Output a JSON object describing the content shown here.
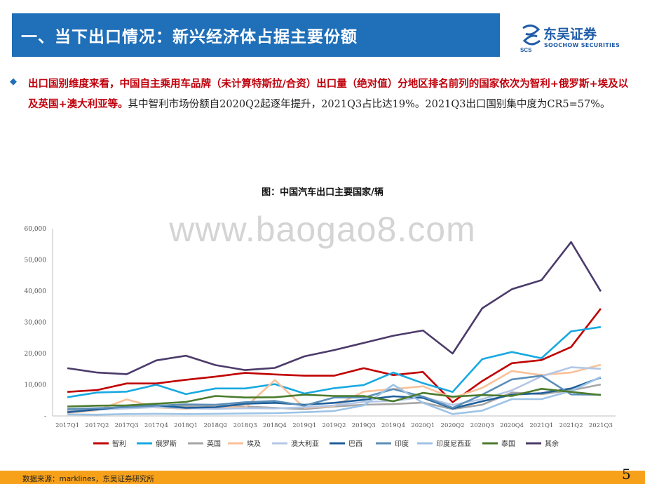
{
  "header": {
    "title": "一、当下出口情况：新兴经济体占据主要份额",
    "logo_name": "东吴证券",
    "logo_sub": "SOOCHOW SECURITIES",
    "logo_mark": "SCS"
  },
  "body": {
    "bullet_icon": "diamond-icon",
    "highlight": "出口国别维度来看，中国自主乘用车品牌（未计算特斯拉/合资）出口量（绝对值）分地区排名前列的国家依次为智利+俄罗斯+埃及以及英国+澳大利亚等。",
    "normal": "其中智利市场份额自2020Q2起逐年提升，2021Q3占比达19%。2021Q3出口国别集中度为CR5=57%。"
  },
  "watermark": "www.baogao8.com",
  "chart_data": {
    "type": "line",
    "title": "图：中国汽车出口主要国家/辆",
    "ylim": [
      0,
      60000
    ],
    "yticks": [
      "-",
      "10,000",
      "20,000",
      "30,000",
      "40,000",
      "50,000",
      "60,000"
    ],
    "categories": [
      "2017Q1",
      "2017Q2",
      "2017Q3",
      "2017Q4",
      "2018Q1",
      "2018Q2",
      "2018Q3",
      "2018Q4",
      "2019Q1",
      "2019Q2",
      "2019Q3",
      "2019Q4",
      "2020Q1",
      "2020Q2",
      "2020Q3",
      "2020Q4",
      "2021Q1",
      "2021Q2",
      "2021Q3"
    ],
    "series": [
      {
        "name": "智利",
        "color": "#c00000",
        "values": [
          7700,
          8300,
          10400,
          10400,
          11600,
          12600,
          13800,
          13300,
          12900,
          12900,
          15300,
          13100,
          14100,
          4400,
          11200,
          16900,
          17900,
          22100,
          34400
        ]
      },
      {
        "name": "俄罗斯",
        "color": "#18a9e1",
        "values": [
          6000,
          7500,
          7800,
          10000,
          7000,
          8800,
          8800,
          10200,
          7200,
          8900,
          9900,
          13900,
          10500,
          7700,
          18200,
          20500,
          18500,
          27100,
          28500
        ]
      },
      {
        "name": "英国",
        "color": "#a6a6a6",
        "values": [
          1800,
          2200,
          2600,
          3000,
          3200,
          3400,
          3000,
          2600,
          2200,
          3000,
          3600,
          3800,
          4300,
          2200,
          3600,
          7500,
          7000,
          8200,
          10100
        ]
      },
      {
        "name": "埃及",
        "color": "#f8c19a",
        "values": [
          1000,
          1800,
          5300,
          2700,
          2300,
          2900,
          2700,
          11500,
          2600,
          3200,
          7800,
          8600,
          9500,
          5800,
          9000,
          14400,
          13100,
          13900,
          16400
        ]
      },
      {
        "name": "澳大利亚",
        "color": "#b4c7e7",
        "values": [
          1400,
          2000,
          2400,
          2800,
          2500,
          2300,
          2500,
          2400,
          2800,
          3400,
          4500,
          4800,
          6100,
          3500,
          5400,
          8200,
          12700,
          15600,
          15100
        ]
      },
      {
        "name": "巴西",
        "color": "#1f5f9a",
        "values": [
          1200,
          2100,
          3000,
          3400,
          2600,
          2800,
          3900,
          4200,
          3600,
          4200,
          5200,
          6300,
          5800,
          2400,
          4700,
          6800,
          7300,
          8800,
          12300
        ]
      },
      {
        "name": "印度",
        "color": "#5b8fb9",
        "values": [
          2200,
          2500,
          2800,
          3300,
          3700,
          3600,
          4400,
          4800,
          3300,
          5900,
          5900,
          8600,
          6200,
          2600,
          6800,
          11700,
          12900,
          6900,
          6800
        ]
      },
      {
        "name": "印度尼西亚",
        "color": "#9dc3e6",
        "values": [
          500,
          400,
          600,
          700,
          600,
          700,
          800,
          900,
          1200,
          1600,
          3400,
          10000,
          4200,
          600,
          1700,
          5400,
          5400,
          8000,
          12500
        ]
      },
      {
        "name": "泰国",
        "color": "#4b7b2c",
        "values": [
          3000,
          3300,
          3400,
          3900,
          4500,
          6400,
          5900,
          6000,
          6800,
          6400,
          6400,
          4700,
          7400,
          6200,
          6700,
          6400,
          8700,
          7700,
          6700
        ]
      },
      {
        "name": "其余",
        "color": "#4b3b6a",
        "values": [
          15300,
          13900,
          13400,
          17800,
          19300,
          16300,
          14700,
          15400,
          19100,
          21100,
          23400,
          25700,
          27400,
          20000,
          34500,
          40600,
          43500,
          55700,
          39900
        ]
      }
    ]
  },
  "footer": {
    "source": "数据来源：marklines，东吴证券研究所",
    "page_number": "5"
  }
}
